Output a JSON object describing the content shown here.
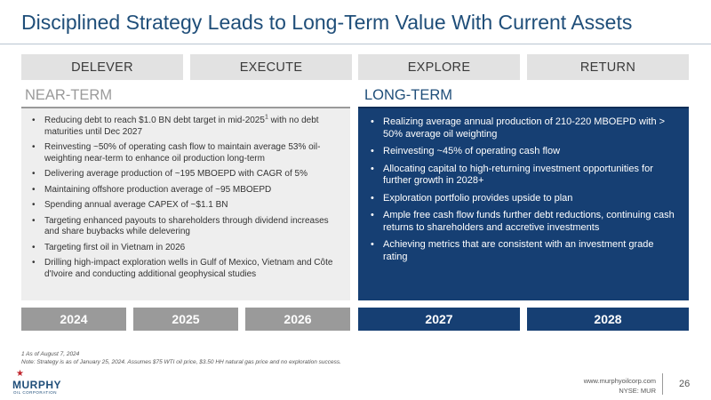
{
  "title": "Disciplined Strategy Leads to Long-Term Value With Current Assets",
  "pillars": [
    "DELEVER",
    "EXECUTE",
    "EXPLORE",
    "RETURN"
  ],
  "near_term": {
    "label": "NEAR-TERM",
    "items": [
      {
        "text": "Reducing debt to reach $1.0 BN debt target in mid-2025",
        "sup": "1",
        "tail": " with no debt maturities until Dec 2027"
      },
      {
        "text": "Reinvesting ~50% of operating cash flow to maintain average 53% oil-weighting near-term to enhance oil production long-term"
      },
      {
        "text": "Delivering average production of ~195 MBOEPD with CAGR of 5%"
      },
      {
        "text": "Maintaining offshore production average of ~95 MBOEPD"
      },
      {
        "text": "Spending annual average CAPEX of ~$1.1 BN"
      },
      {
        "text": "Targeting enhanced payouts to shareholders through dividend increases and share buybacks while delevering"
      },
      {
        "text": "Targeting first oil in Vietnam in 2026"
      },
      {
        "text": "Drilling high-impact exploration wells in Gulf of Mexico, Vietnam and Côte d'Ivoire and conducting additional geophysical studies"
      }
    ]
  },
  "long_term": {
    "label": "LONG-TERM",
    "items": [
      {
        "text": "Realizing average annual production of 210-220 MBOEPD with > 50% average oil weighting"
      },
      {
        "text": "Reinvesting ~45% of operating cash flow"
      },
      {
        "text": "Allocating capital to high-returning investment opportunities for further growth in 2028+"
      },
      {
        "text": "Exploration portfolio provides upside to plan"
      },
      {
        "text": "Ample free cash flow funds further debt reductions, continuing cash returns to shareholders and accretive investments"
      },
      {
        "text": "Achieving metrics that are consistent with an investment grade rating"
      }
    ]
  },
  "years": [
    "2024",
    "2025",
    "2026",
    "2027",
    "2028"
  ],
  "bullet_glyph": "•",
  "footnotes": {
    "line1": "1 As of August 7, 2024",
    "line2": "Note: Strategy is as of January 25, 2024. Assumes $75 WTI oil price, $3.50 HH natural gas price and no exploration success."
  },
  "logo": {
    "name": "MURPHY",
    "sub": "OIL CORPORATION",
    "star_glyph": "★",
    "star_color": "#c0262d"
  },
  "website": "www.murphyoilcorp.com",
  "ticker": "NYSE: MUR",
  "page_number": "26",
  "colors": {
    "navy": "#163f73",
    "title_blue": "#1f4e79",
    "gray_bar": "#9a9a9a",
    "pillar_bg": "#e2e2e2"
  }
}
